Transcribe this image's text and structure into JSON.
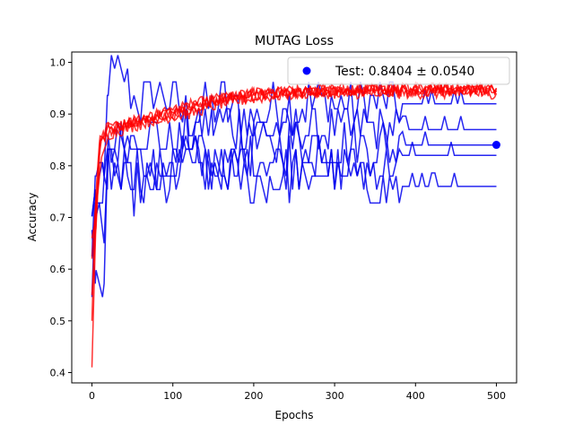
{
  "chart_data": {
    "type": "line",
    "title": "MUTAG Loss",
    "xlabel": "Epochs",
    "ylabel": "Accuracy",
    "xlim": [
      -25,
      525
    ],
    "ylim": [
      0.38,
      1.02
    ],
    "xticks": [
      0,
      100,
      200,
      300,
      400,
      500
    ],
    "yticks": [
      0.4,
      0.5,
      0.6,
      0.7,
      0.8,
      0.9,
      1.0
    ],
    "legend_position": "top-right",
    "legend": [
      {
        "label": "Test: 0.8404 ± 0.0540",
        "marker": "circle",
        "color": "#0000ff"
      }
    ],
    "series_colors": {
      "train": "#ff0000",
      "validation": "#0000ee"
    },
    "test_point": {
      "x": 500,
      "y": 0.8404
    },
    "train_series": [
      {
        "x": [
          0,
          5,
          10,
          20,
          40,
          80,
          120,
          160,
          200,
          260,
          320,
          400,
          500
        ],
        "y": [
          0.41,
          0.7,
          0.85,
          0.87,
          0.88,
          0.9,
          0.91,
          0.93,
          0.94,
          0.945,
          0.945,
          0.95,
          0.95
        ]
      },
      {
        "x": [
          0,
          5,
          10,
          20,
          40,
          80,
          120,
          160,
          200,
          260,
          320,
          400,
          500
        ],
        "y": [
          0.5,
          0.76,
          0.85,
          0.88,
          0.88,
          0.89,
          0.92,
          0.93,
          0.94,
          0.94,
          0.945,
          0.945,
          0.945
        ]
      },
      {
        "x": [
          0,
          5,
          10,
          20,
          40,
          80,
          120,
          160,
          200,
          260,
          320,
          400,
          500
        ],
        "y": [
          0.62,
          0.73,
          0.84,
          0.86,
          0.87,
          0.89,
          0.9,
          0.92,
          0.93,
          0.94,
          0.94,
          0.94,
          0.94
        ]
      },
      {
        "x": [
          0,
          5,
          10,
          20,
          40,
          80,
          120,
          160,
          200,
          260,
          320,
          400,
          500
        ],
        "y": [
          0.66,
          0.7,
          0.8,
          0.86,
          0.88,
          0.89,
          0.91,
          0.93,
          0.935,
          0.945,
          0.95,
          0.945,
          0.95
        ]
      },
      {
        "x": [
          0,
          5,
          10,
          20,
          40,
          80,
          120,
          160,
          200,
          260,
          320,
          400,
          500
        ],
        "y": [
          0.55,
          0.69,
          0.84,
          0.87,
          0.88,
          0.9,
          0.92,
          0.93,
          0.94,
          0.94,
          0.945,
          0.95,
          0.945
        ]
      }
    ],
    "validation_series": [
      {
        "x": [
          0,
          5,
          15,
          20,
          40,
          60,
          80,
          120,
          160,
          200,
          260,
          300,
          360,
          400,
          500
        ],
        "y": [
          0.55,
          0.76,
          0.76,
          0.97,
          0.97,
          0.92,
          0.95,
          0.89,
          0.92,
          0.9,
          0.92,
          0.92,
          0.92,
          0.92,
          0.92
        ]
      },
      {
        "x": [
          0,
          5,
          15,
          20,
          40,
          60,
          100,
          150,
          200,
          260,
          300,
          360,
          400,
          500
        ],
        "y": [
          0.68,
          0.55,
          0.55,
          0.84,
          0.84,
          0.87,
          0.84,
          0.89,
          0.87,
          0.87,
          0.87,
          0.87,
          0.87,
          0.87
        ]
      },
      {
        "x": [
          0,
          5,
          15,
          20,
          40,
          80,
          120,
          160,
          200,
          260,
          300,
          360,
          400,
          500
        ],
        "y": [
          0.7,
          0.7,
          0.69,
          0.82,
          0.84,
          0.78,
          0.81,
          0.79,
          0.84,
          0.84,
          0.84,
          0.84,
          0.84,
          0.84
        ]
      },
      {
        "x": [
          0,
          5,
          15,
          20,
          40,
          80,
          120,
          160,
          200,
          260,
          300,
          360,
          400,
          500
        ],
        "y": [
          0.63,
          0.78,
          0.74,
          0.81,
          0.79,
          0.79,
          0.81,
          0.79,
          0.82,
          0.81,
          0.79,
          0.79,
          0.82,
          0.82
        ]
      },
      {
        "x": [
          0,
          5,
          15,
          20,
          40,
          80,
          120,
          160,
          200,
          260,
          300,
          340,
          400,
          500
        ],
        "y": [
          0.7,
          0.74,
          0.74,
          0.79,
          0.76,
          0.76,
          0.82,
          0.79,
          0.76,
          0.79,
          0.79,
          0.76,
          0.76,
          0.76
        ]
      }
    ]
  }
}
